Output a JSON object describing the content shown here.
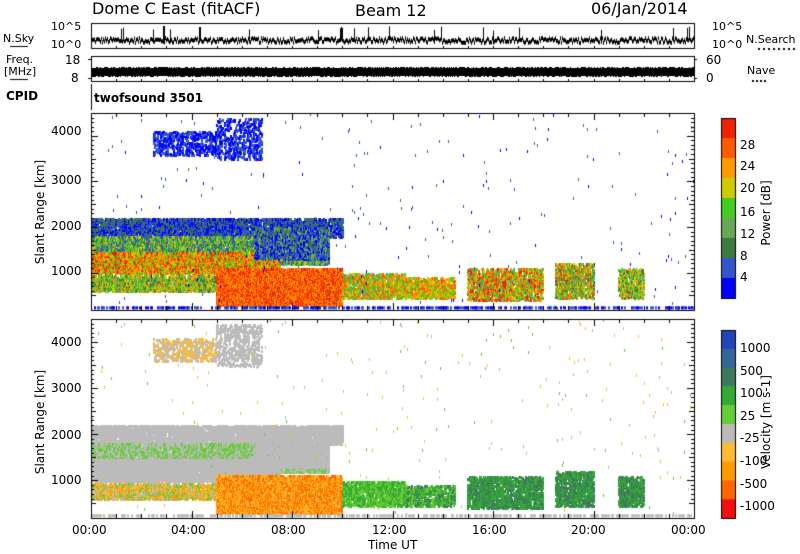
{
  "header": {
    "station": "Dome C East (fitACF)",
    "beam": "Beam 12",
    "date": "06/Jan/2014"
  },
  "top_panels": {
    "nsky": {
      "label": "N.Sky",
      "tick_top": "10^5",
      "tick_bottom": "10^0"
    },
    "nsearch": {
      "label": "N.Search",
      "tick_top": "10^5",
      "tick_bottom": "10^0"
    },
    "freq": {
      "label_line1": "Freq.",
      "label_line2": "[MHz]",
      "tick_top": "18",
      "tick_bottom": "8"
    },
    "nave": {
      "label": "Nave",
      "tick_top": "60",
      "tick_bottom": "0"
    },
    "cpid": {
      "label": "CPID",
      "value": "twofsound 3501"
    }
  },
  "colors": {
    "power": [
      "#0000ff",
      "#3355cc",
      "#3d7a3d",
      "#66aa55",
      "#44cc22",
      "#cccc00",
      "#ff9900",
      "#ff5a00",
      "#ee2200"
    ],
    "velocity": [
      "#ee1111",
      "#ff6600",
      "#ff9900",
      "#ffbb33",
      "#bbbbbb",
      "#66cc33",
      "#33aa33",
      "#3d7a5d",
      "#336699",
      "#2244bb"
    ]
  },
  "chart_data": [
    {
      "type": "heatmap",
      "title": "Power",
      "ylabel": "Slant Range [km]",
      "xlabel": "Time UT",
      "x_ticks": [
        "00:00",
        "04:00",
        "08:00",
        "12:00",
        "16:00",
        "20:00",
        "00:00"
      ],
      "x_tick_hours": [
        0,
        4,
        8,
        12,
        16,
        20,
        24
      ],
      "xlim": [
        0,
        24
      ],
      "y_ticks": [
        1000,
        2000,
        3000,
        4000
      ],
      "ylim": [
        180,
        4500
      ],
      "colorbar": {
        "label": "Power [dB]",
        "range": [
          0,
          32
        ],
        "ticks": [
          "4",
          "8",
          "12",
          "16",
          "20",
          "24",
          "28"
        ]
      }
    },
    {
      "type": "heatmap",
      "title": "Velocity",
      "ylabel": "Slant Range [km]",
      "xlabel": "Time UT",
      "x_ticks": [
        "00:00",
        "04:00",
        "08:00",
        "12:00",
        "16:00",
        "20:00",
        "00:00"
      ],
      "x_tick_hours": [
        0,
        4,
        8,
        12,
        16,
        20,
        24
      ],
      "xlim": [
        0,
        24
      ],
      "y_ticks": [
        1000,
        2000,
        3000,
        4000
      ],
      "ylim": [
        180,
        4500
      ],
      "colorbar": {
        "label": "Velocity [m s-1]",
        "ticks": [
          "1000",
          "500",
          "100",
          "25",
          "-25",
          "-100",
          "-500",
          "-1000"
        ]
      }
    }
  ],
  "time_axis_label": "Time UT"
}
